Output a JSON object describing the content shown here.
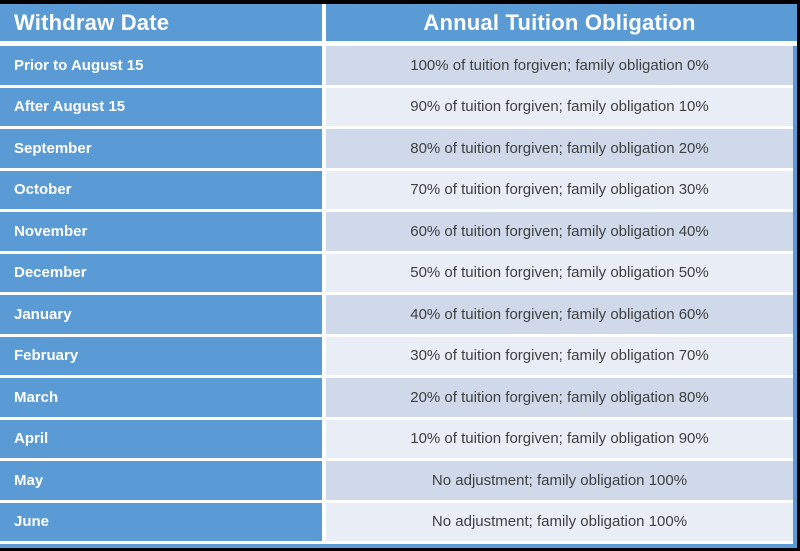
{
  "table": {
    "header": {
      "col1": "Withdraw Date",
      "col2": "Annual Tuition Obligation"
    },
    "rows": [
      {
        "date": "Prior to August 15",
        "obligation": "100% of tuition forgiven; family obligation 0%"
      },
      {
        "date": "After August 15",
        "obligation": "90% of tuition forgiven; family obligation 10%"
      },
      {
        "date": "September",
        "obligation": "80% of tuition forgiven; family obligation 20%"
      },
      {
        "date": "October",
        "obligation": "70% of tuition forgiven; family obligation 30%"
      },
      {
        "date": "November",
        "obligation": "60% of tuition forgiven; family obligation 40%"
      },
      {
        "date": "December",
        "obligation": "50% of tuition forgiven; family obligation 50%"
      },
      {
        "date": "January",
        "obligation": "40% of tuition forgiven; family obligation 60%"
      },
      {
        "date": "February",
        "obligation": "30% of tuition forgiven; family obligation 70%"
      },
      {
        "date": "March",
        "obligation": "20% of tuition forgiven; family obligation 80%"
      },
      {
        "date": "April",
        "obligation": "10% of tuition forgiven; family obligation 90%"
      },
      {
        "date": "May",
        "obligation": "No adjustment; family obligation 100%"
      },
      {
        "date": "June",
        "obligation": "No adjustment; family obligation 100%"
      }
    ],
    "colors": {
      "accent_blue": "#5b9bd5",
      "row_shade_dark": "#cfd9ea",
      "row_shade_light": "#e9edf5",
      "separator": "#ffffff",
      "body_text": "#404040",
      "header_text": "#ffffff",
      "frame": "#000000"
    }
  }
}
